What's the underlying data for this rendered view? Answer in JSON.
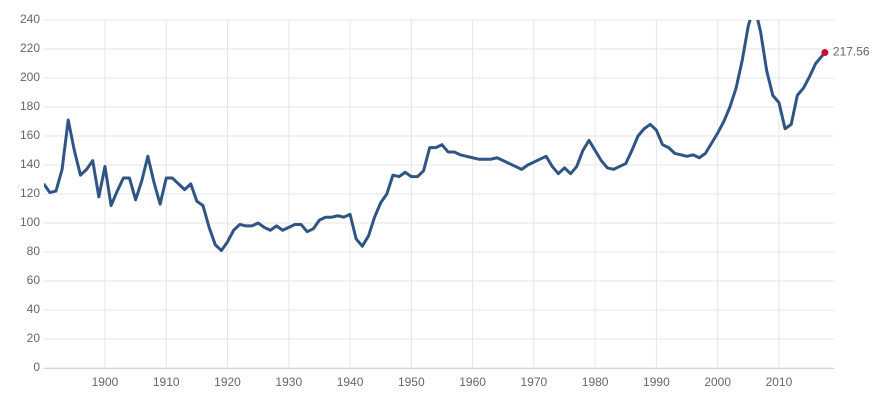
{
  "chart_data": {
    "type": "line",
    "x": [
      1890,
      1891,
      1892,
      1893,
      1894,
      1895,
      1896,
      1897,
      1898,
      1899,
      1900,
      1901,
      1902,
      1903,
      1904,
      1905,
      1906,
      1907,
      1908,
      1909,
      1910,
      1911,
      1912,
      1913,
      1914,
      1915,
      1916,
      1917,
      1918,
      1919,
      1920,
      1921,
      1922,
      1923,
      1924,
      1925,
      1926,
      1927,
      1928,
      1929,
      1930,
      1931,
      1932,
      1933,
      1934,
      1935,
      1936,
      1937,
      1938,
      1939,
      1940,
      1941,
      1942,
      1943,
      1944,
      1945,
      1946,
      1947,
      1948,
      1949,
      1950,
      1951,
      1952,
      1953,
      1954,
      1955,
      1956,
      1957,
      1958,
      1959,
      1960,
      1961,
      1962,
      1963,
      1964,
      1965,
      1966,
      1967,
      1968,
      1969,
      1970,
      1971,
      1972,
      1973,
      1974,
      1975,
      1976,
      1977,
      1978,
      1979,
      1980,
      1981,
      1982,
      1983,
      1984,
      1985,
      1986,
      1987,
      1988,
      1989,
      1990,
      1991,
      1992,
      1993,
      1994,
      1995,
      1996,
      1997,
      1998,
      1999,
      2000,
      2001,
      2002,
      2003,
      2004,
      2005,
      2006,
      2007,
      2008,
      2009,
      2010,
      2011,
      2012,
      2013,
      2014,
      2015,
      2016,
      2017.5
    ],
    "series": [
      {
        "color": "#2f5584",
        "values": [
          127,
          121,
          122,
          137,
          171,
          150,
          133,
          137,
          143,
          118,
          139,
          112,
          122,
          131,
          131,
          116,
          129,
          146,
          128,
          113,
          131,
          131,
          127,
          123,
          127,
          115,
          112,
          97,
          85,
          81,
          87,
          95,
          99,
          98,
          98,
          100,
          97,
          95,
          98,
          95,
          97,
          99,
          99,
          94,
          96,
          102,
          104,
          104,
          105,
          104,
          106,
          89,
          84,
          91,
          104,
          114,
          120,
          133,
          132,
          135,
          132,
          132,
          136,
          152,
          152,
          154,
          149,
          149,
          147,
          146,
          145,
          144,
          144,
          144,
          145,
          143,
          141,
          139,
          137,
          140,
          142,
          144,
          146,
          139,
          134,
          138,
          134,
          139,
          150,
          157,
          150,
          143,
          138,
          137,
          139,
          141,
          150,
          160,
          165,
          168,
          164,
          154,
          152,
          148,
          147,
          146,
          147,
          145,
          148,
          155,
          162,
          170,
          180,
          193,
          212,
          236,
          250,
          232,
          205,
          188,
          183,
          165,
          168,
          188,
          193,
          201,
          210,
          217.56
        ]
      }
    ],
    "last_point_color": "#c8102e",
    "xlim": [
      1890,
      2019
    ],
    "xticks": [
      1900,
      1910,
      1920,
      1930,
      1940,
      1950,
      1960,
      1970,
      1980,
      1990,
      2000,
      2010
    ],
    "ylim": [
      0,
      240
    ],
    "yticks": [
      0,
      20,
      40,
      60,
      80,
      100,
      120,
      140,
      160,
      180,
      200,
      220,
      240
    ],
    "grid": true
  }
}
